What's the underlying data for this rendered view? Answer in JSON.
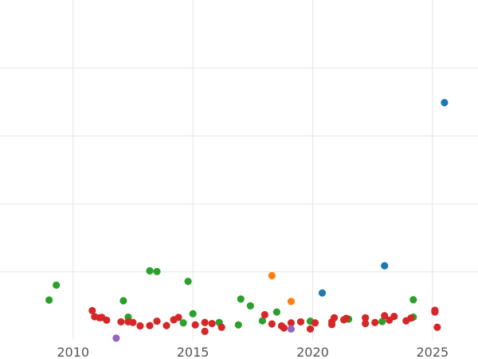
{
  "chart_data": {
    "type": "scatter",
    "title": "",
    "xlabel": "",
    "ylabel": "",
    "xlim": [
      2006.95,
      2026.9
    ],
    "ylim": [
      0,
      100
    ],
    "grid": true,
    "legend": "none",
    "x_ticks": [
      2010,
      2015,
      2020,
      2025
    ],
    "x_tick_labels": [
      "2010",
      "2015",
      "2020",
      "2025"
    ],
    "y_gridlines": [
      20,
      40,
      60,
      80
    ],
    "series": [
      {
        "color": "#1f77b4",
        "points": [
          {
            "x": 2025.5,
            "y": 69.8
          },
          {
            "x": 2023.0,
            "y": 21.8
          },
          {
            "x": 2020.4,
            "y": 13.8
          }
        ]
      },
      {
        "color": "#ff7f0e",
        "points": [
          {
            "x": 2018.3,
            "y": 18.9
          },
          {
            "x": 2019.1,
            "y": 11.3
          }
        ]
      },
      {
        "color": "#2ca02c",
        "points": [
          {
            "x": 2009.0,
            "y": 11.7
          },
          {
            "x": 2009.3,
            "y": 16.1
          },
          {
            "x": 2012.1,
            "y": 11.5
          },
          {
            "x": 2012.3,
            "y": 6.7
          },
          {
            "x": 2013.2,
            "y": 20.3
          },
          {
            "x": 2013.5,
            "y": 20.1
          },
          {
            "x": 2014.6,
            "y": 5.0
          },
          {
            "x": 2014.8,
            "y": 17.2
          },
          {
            "x": 2015.0,
            "y": 7.7
          },
          {
            "x": 2016.1,
            "y": 5.1
          },
          {
            "x": 2016.9,
            "y": 4.4
          },
          {
            "x": 2017.0,
            "y": 12.0
          },
          {
            "x": 2017.4,
            "y": 10.0
          },
          {
            "x": 2017.9,
            "y": 5.6
          },
          {
            "x": 2018.5,
            "y": 8.2
          },
          {
            "x": 2019.9,
            "y": 5.5
          },
          {
            "x": 2021.5,
            "y": 6.1
          },
          {
            "x": 2022.9,
            "y": 5.4
          },
          {
            "x": 2024.2,
            "y": 6.7
          },
          {
            "x": 2024.2,
            "y": 11.8
          }
        ]
      },
      {
        "color": "#d62728",
        "points": [
          {
            "x": 2010.8,
            "y": 8.6
          },
          {
            "x": 2010.9,
            "y": 6.8
          },
          {
            "x": 2011.1,
            "y": 6.5
          },
          {
            "x": 2011.2,
            "y": 6.6
          },
          {
            "x": 2011.4,
            "y": 5.8
          },
          {
            "x": 2012.0,
            "y": 5.3
          },
          {
            "x": 2012.3,
            "y": 5.3
          },
          {
            "x": 2012.5,
            "y": 5.1
          },
          {
            "x": 2012.8,
            "y": 4.1
          },
          {
            "x": 2013.2,
            "y": 4.2
          },
          {
            "x": 2013.5,
            "y": 5.5
          },
          {
            "x": 2013.9,
            "y": 4.2
          },
          {
            "x": 2014.2,
            "y": 5.9
          },
          {
            "x": 2014.4,
            "y": 6.6
          },
          {
            "x": 2015.1,
            "y": 4.4
          },
          {
            "x": 2015.5,
            "y": 5.1
          },
          {
            "x": 2015.5,
            "y": 2.5
          },
          {
            "x": 2015.8,
            "y": 4.8
          },
          {
            "x": 2016.2,
            "y": 3.7
          },
          {
            "x": 2018.0,
            "y": 7.4
          },
          {
            "x": 2018.3,
            "y": 4.7
          },
          {
            "x": 2018.7,
            "y": 4.1
          },
          {
            "x": 2018.8,
            "y": 3.5
          },
          {
            "x": 2019.1,
            "y": 5.0
          },
          {
            "x": 2019.5,
            "y": 5.3
          },
          {
            "x": 2019.9,
            "y": 3.2
          },
          {
            "x": 2020.1,
            "y": 5.0
          },
          {
            "x": 2020.8,
            "y": 5.3
          },
          {
            "x": 2020.8,
            "y": 4.5
          },
          {
            "x": 2020.9,
            "y": 6.5
          },
          {
            "x": 2021.3,
            "y": 5.9
          },
          {
            "x": 2021.4,
            "y": 6.3
          },
          {
            "x": 2022.2,
            "y": 6.5
          },
          {
            "x": 2022.2,
            "y": 4.8
          },
          {
            "x": 2022.6,
            "y": 5.1
          },
          {
            "x": 2023.0,
            "y": 7.1
          },
          {
            "x": 2023.2,
            "y": 5.8
          },
          {
            "x": 2023.4,
            "y": 6.9
          },
          {
            "x": 2023.9,
            "y": 5.6
          },
          {
            "x": 2024.1,
            "y": 6.4
          },
          {
            "x": 2025.1,
            "y": 8.7
          },
          {
            "x": 2025.1,
            "y": 8.2
          },
          {
            "x": 2025.2,
            "y": 3.7
          }
        ]
      },
      {
        "color": "#9467bd",
        "points": [
          {
            "x": 2011.8,
            "y": 0.5
          },
          {
            "x": 2019.1,
            "y": 3.2
          }
        ]
      }
    ]
  }
}
